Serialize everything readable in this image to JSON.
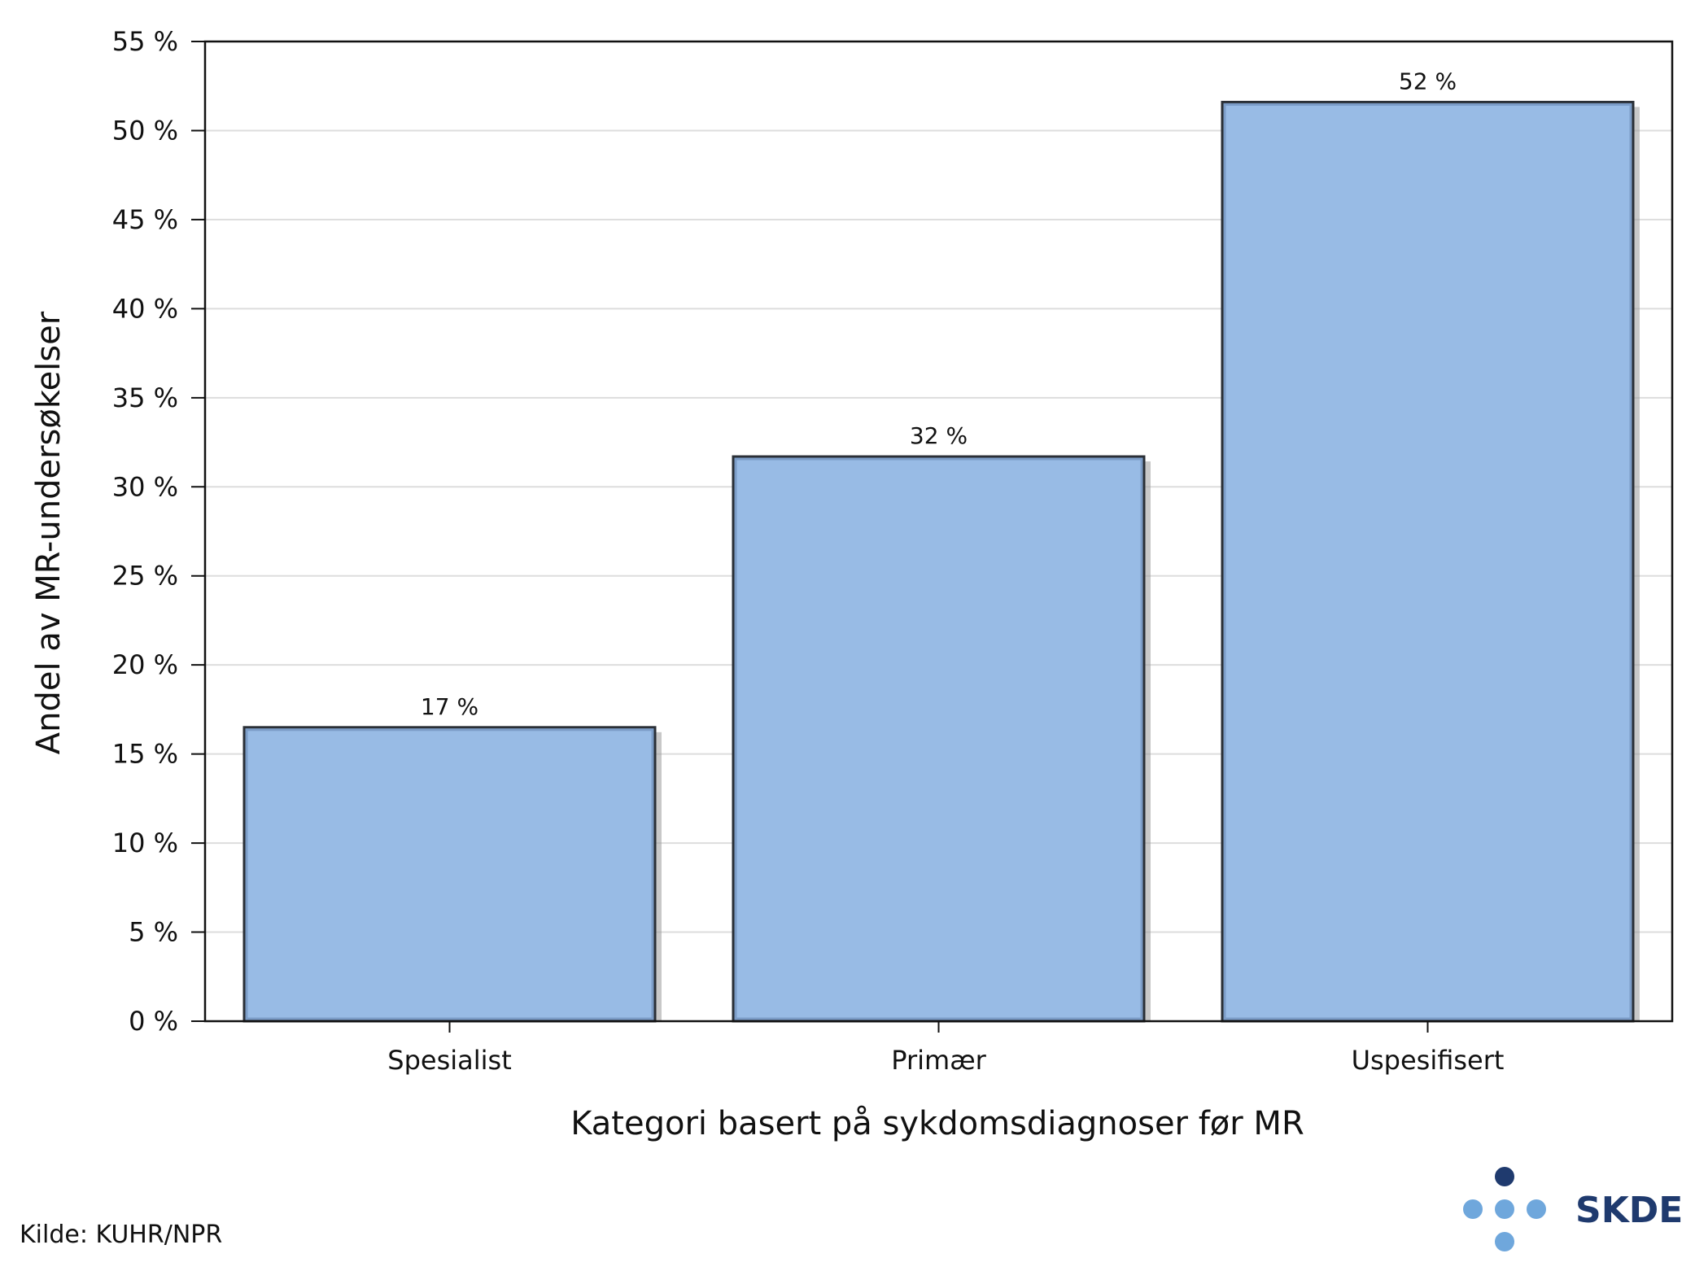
{
  "chart_data": {
    "type": "bar",
    "categories": [
      "Spesialist",
      "Primær",
      "Uspesifisert"
    ],
    "values": [
      16.5,
      31.7,
      51.6
    ],
    "data_labels": [
      "17 %",
      "32 %",
      "52 %"
    ],
    "title": "",
    "xlabel": "Kategori basert på sykdomsdiagnoser før MR",
    "ylabel": "Andel av MR-undersøkelser",
    "ylim": [
      0,
      55
    ],
    "yticks": [
      0,
      5,
      10,
      15,
      20,
      25,
      30,
      35,
      40,
      45,
      50,
      55
    ],
    "ytick_suffix": " %",
    "grid": true,
    "legend": "none"
  },
  "colors": {
    "bar_fill": "#98bbe5",
    "bar_stroke": "#2a2f36",
    "grid": "#dddddd",
    "logo_dark": "#1f3a6e",
    "logo_light": "#6fa7dc",
    "logo_text": "#1f3a6e"
  },
  "source": "Kilde: KUHR/NPR",
  "logo": {
    "text": "SKDE",
    "icon": "skde-dots-logo-icon"
  }
}
